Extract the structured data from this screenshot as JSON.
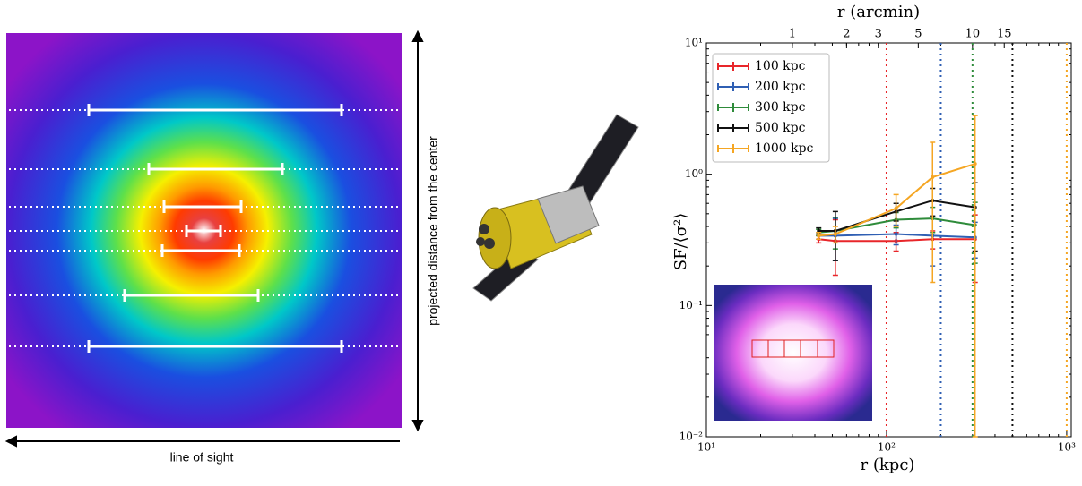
{
  "left_panel": {
    "x_label": "line of sight",
    "y_label": "projected distance from the center"
  },
  "chart_data": {
    "type": "line",
    "xlabel": "r (kpc)",
    "ylabel": "SF/⟨σ²⟩",
    "x2label": "r (arcmin)",
    "xscale": "log",
    "yscale": "log",
    "x2scale": "log",
    "xlim": [
      10,
      1060
    ],
    "ylim": [
      0.01,
      10
    ],
    "x2lim": [
      0.3333,
      35.33
    ],
    "xticks": [
      {
        "value": 10,
        "label": "10¹"
      },
      {
        "value": 100,
        "label": "10²"
      },
      {
        "value": 1000,
        "label": "10³"
      }
    ],
    "yticks": [
      {
        "value": 0.01,
        "label": "10⁻²"
      },
      {
        "value": 0.1,
        "label": "10⁻¹"
      },
      {
        "value": 1,
        "label": "10⁰"
      },
      {
        "value": 10,
        "label": "10¹"
      }
    ],
    "x2ticks": [
      1,
      2,
      3,
      5,
      10,
      15
    ],
    "minor_ticks": true,
    "legend": "upper left",
    "x": [
      42,
      52,
      113,
      180,
      310
    ],
    "series": [
      {
        "name": "100 kpc",
        "color": "#e8262a",
        "vline": 100,
        "values": [
          0.32,
          0.31,
          0.31,
          0.32,
          0.32
        ],
        "errors": [
          0.02,
          0.14,
          0.05,
          0.05,
          0.17
        ]
      },
      {
        "name": "200 kpc",
        "color": "#2f5fb3",
        "vline": 200,
        "values": [
          0.34,
          0.34,
          0.35,
          0.34,
          0.33
        ],
        "errors": [
          0.02,
          0.12,
          0.06,
          0.14,
          0.1
        ]
      },
      {
        "name": "300 kpc",
        "color": "#2e8b3a",
        "vline": 300,
        "values": [
          0.36,
          0.37,
          0.45,
          0.46,
          0.41
        ],
        "errors": [
          0.02,
          0.1,
          0.06,
          0.1,
          0.2
        ]
      },
      {
        "name": "500 kpc",
        "color": "#111111",
        "vline": 500,
        "values": [
          0.37,
          0.37,
          0.52,
          0.63,
          0.56
        ],
        "errors": [
          0.02,
          0.15,
          0.08,
          0.15,
          0.3
        ]
      },
      {
        "name": "1000 kpc",
        "color": "#f5a623",
        "vline": 1000,
        "values": [
          0.34,
          0.35,
          0.55,
          0.95,
          1.2
        ],
        "errors": [
          0.02,
          0.05,
          0.15,
          0.8,
          1.6
        ]
      }
    ]
  }
}
